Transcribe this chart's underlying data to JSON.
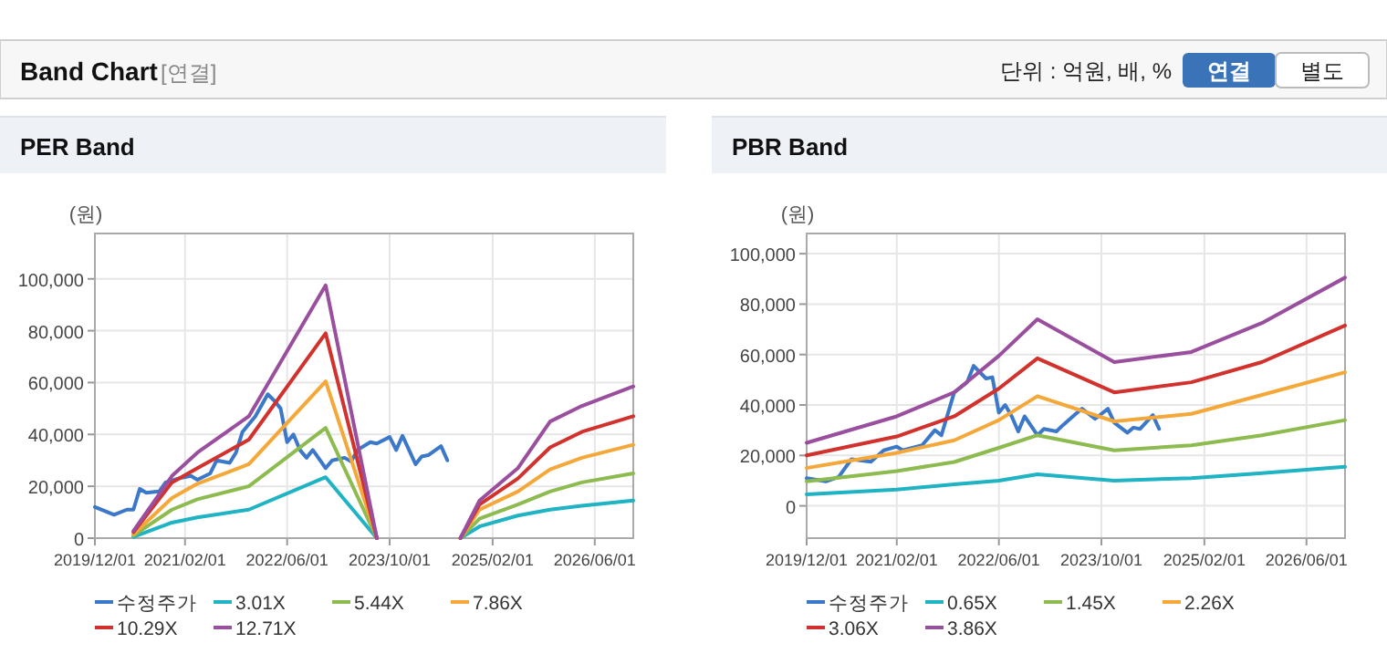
{
  "chart_data": [
    {
      "type": "other",
      "title": "Band Chart",
      "annotations": [
        "[연결]",
        "단위 : 억원, 배, %",
        "연결",
        "별도"
      ]
    },
    {
      "type": "line",
      "title": "PER Band",
      "ylabel": "(원)",
      "grid": true,
      "legend": "bottom",
      "marker": "none",
      "line_style": "solid",
      "x": [
        "2020-06",
        "2020-12",
        "2021-04",
        "2021-12",
        "2022-12",
        "2023-08",
        "2024-02",
        "2024-09",
        "2024-12",
        "2025-06",
        "2025-11",
        "2026-04",
        "2026-12"
      ],
      "xlim": [
        "2019-12-01",
        "2026-12-01"
      ],
      "xticks": [
        {
          "value": "2019-12-01",
          "label": "2019/12/01"
        },
        {
          "value": "2021-02-01",
          "label": "2021/02/01"
        },
        {
          "value": "2022-06-01",
          "label": "2022/06/01"
        },
        {
          "value": "2023-10-01",
          "label": "2023/10/01"
        },
        {
          "value": "2025-02-01",
          "label": "2025/02/01"
        },
        {
          "value": "2026-06-01",
          "label": "2026/06/01"
        }
      ],
      "ylim": [
        0,
        117500
      ],
      "yticks": [
        0,
        {
          "value": 20000,
          "label": "20,000"
        },
        {
          "value": 40000,
          "label": "40,000"
        },
        {
          "value": 60000,
          "label": "60,000"
        },
        {
          "value": 80000,
          "label": "80,000"
        },
        {
          "value": 100000,
          "label": "100,000"
        }
      ],
      "series": [
        {
          "name": "수정주가",
          "color": "#3b78c9",
          "x": [
            "2019-12",
            "2020-03",
            "2020-05",
            "2020-06",
            "2020-07",
            "2020-08",
            "2020-10",
            "2020-11",
            "2021-01",
            "2021-03",
            "2021-04",
            "2021-06",
            "2021-07",
            "2021-09",
            "2021-10",
            "2021-11",
            "2022-01",
            "2022-03",
            "2022-04",
            "2022-05",
            "2022-06",
            "2022-07",
            "2022-08",
            "2022-09",
            "2022-10",
            "2022-12",
            "2023-01",
            "2023-03",
            "2023-04",
            "2023-05",
            "2023-07",
            "2023-08",
            "2023-10",
            "2023-11",
            "2023-12",
            "2024-01",
            "2024-02",
            "2024-03",
            "2024-04",
            "2024-06",
            "2024-07"
          ],
          "values": [
            12000,
            9000,
            11000,
            11000,
            19000,
            17500,
            18000,
            21500,
            23000,
            24000,
            22500,
            25000,
            30000,
            29000,
            33000,
            41000,
            47000,
            55500,
            53000,
            50000,
            37000,
            40000,
            34000,
            31000,
            34000,
            27000,
            30000,
            31000,
            29500,
            34000,
            37000,
            36500,
            39000,
            34000,
            39500,
            34000,
            28500,
            31500,
            32000,
            35500,
            30000
          ]
        },
        {
          "name": "3.01X",
          "color": "#1fb3c4",
          "values": [
            500,
            6000,
            8000,
            11000,
            23500,
            0,
            null,
            0,
            4500,
            8700,
            11000,
            12500,
            14500
          ]
        },
        {
          "name": "5.44X",
          "color": "#8dbb4f",
          "values": [
            1000,
            11000,
            15000,
            20000,
            42500,
            0,
            null,
            0,
            7500,
            13000,
            18000,
            21500,
            25000
          ]
        },
        {
          "name": "7.86X",
          "color": "#f5a83a",
          "values": [
            1500,
            15500,
            21000,
            28500,
            60500,
            0,
            null,
            0,
            11000,
            18000,
            26500,
            31000,
            36000
          ]
        },
        {
          "name": "10.29X",
          "color": "#d2322d",
          "values": [
            2300,
            21500,
            27000,
            38000,
            79000,
            0,
            null,
            0,
            13000,
            23000,
            35000,
            41000,
            47000
          ]
        },
        {
          "name": "12.71X",
          "color": "#9a4f9e",
          "values": [
            2800,
            24000,
            33000,
            47000,
            97500,
            0,
            null,
            0,
            14500,
            27000,
            45000,
            51000,
            58500
          ]
        }
      ]
    },
    {
      "type": "line",
      "title": "PBR Band",
      "ylabel": "(원)",
      "grid": true,
      "legend": "bottom",
      "marker": "none",
      "line_style": "solid",
      "x": [
        "2019-12",
        "2021-02",
        "2021-11",
        "2022-06",
        "2022-12",
        "2023-12",
        "2024-12",
        "2025-11",
        "2026-12"
      ],
      "xlim": [
        "2019-12-01",
        "2026-12-01"
      ],
      "xticks": [
        {
          "value": "2019-12-01",
          "label": "2019/12/01"
        },
        {
          "value": "2021-02-01",
          "label": "2021/02/01"
        },
        {
          "value": "2022-06-01",
          "label": "2022/06/01"
        },
        {
          "value": "2023-10-01",
          "label": "2023/10/01"
        },
        {
          "value": "2025-02-01",
          "label": "2025/02/01"
        },
        {
          "value": "2026-06-01",
          "label": "2026/06/01"
        }
      ],
      "ylim": [
        -12800,
        108000
      ],
      "yticks": [
        0,
        {
          "value": 20000,
          "label": "20,000"
        },
        {
          "value": 40000,
          "label": "40,000"
        },
        {
          "value": 60000,
          "label": "60,000"
        },
        {
          "value": 80000,
          "label": "80,000"
        },
        {
          "value": 100000,
          "label": "100,000"
        }
      ],
      "series": [
        {
          "name": "수정주가",
          "color": "#3b78c9",
          "x": [
            "2019-12",
            "2020-03",
            "2020-05",
            "2020-07",
            "2020-10",
            "2020-12",
            "2021-02",
            "2021-03",
            "2021-06",
            "2021-08",
            "2021-09",
            "2021-11",
            "2022-01",
            "2022-02",
            "2022-04",
            "2022-05",
            "2022-06",
            "2022-07",
            "2022-08",
            "2022-09",
            "2022-10",
            "2022-12",
            "2023-01",
            "2023-03",
            "2023-04",
            "2023-06",
            "2023-07",
            "2023-09",
            "2023-10",
            "2023-11",
            "2023-12",
            "2024-02",
            "2024-03",
            "2024-04",
            "2024-06",
            "2024-07"
          ],
          "values": [
            11000,
            9700,
            11500,
            18500,
            17500,
            22000,
            23500,
            22000,
            24000,
            30000,
            28000,
            45000,
            49000,
            55500,
            50500,
            51000,
            37000,
            40000,
            35500,
            29500,
            35500,
            28000,
            30500,
            29500,
            32000,
            36500,
            38500,
            34500,
            36500,
            38500,
            33000,
            29000,
            31000,
            30500,
            36000,
            30500
          ]
        },
        {
          "name": "0.65X",
          "color": "#1fb3c4",
          "values": [
            4600,
            6500,
            8500,
            10000,
            12500,
            10000,
            11000,
            13000,
            15500
          ]
        },
        {
          "name": "1.45X",
          "color": "#8dbb4f",
          "values": [
            9700,
            13800,
            17400,
            23000,
            28000,
            22000,
            24000,
            28000,
            34000
          ]
        },
        {
          "name": "2.26X",
          "color": "#f5a83a",
          "values": [
            15000,
            21000,
            26000,
            34000,
            43500,
            33500,
            36500,
            44000,
            53000
          ]
        },
        {
          "name": "3.06X",
          "color": "#d2322d",
          "values": [
            20000,
            27500,
            35500,
            46500,
            58500,
            45000,
            49000,
            57000,
            71500
          ]
        },
        {
          "name": "3.86X",
          "color": "#9a4f9e",
          "values": [
            25000,
            35500,
            45000,
            59500,
            74000,
            57000,
            61000,
            72500,
            90500
          ]
        }
      ]
    }
  ]
}
